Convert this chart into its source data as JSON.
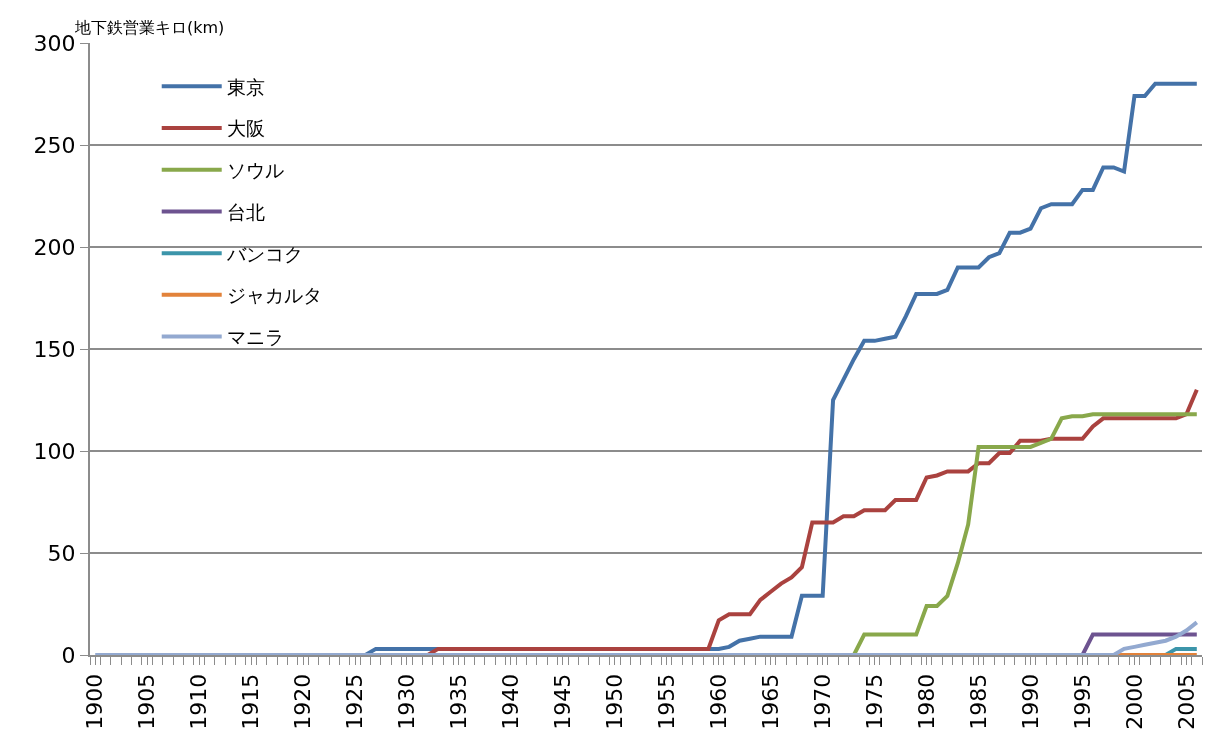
{
  "chart_data": {
    "type": "line",
    "ylabel": "地下鉄営業キロ(km)",
    "categories": [
      "1900",
      null,
      null,
      null,
      null,
      "1905",
      null,
      null,
      null,
      null,
      "1910",
      null,
      null,
      null,
      null,
      "1915",
      null,
      null,
      null,
      null,
      "1920",
      null,
      null,
      null,
      null,
      "1925",
      null,
      null,
      null,
      null,
      "1930",
      null,
      null,
      null,
      null,
      "1935",
      null,
      null,
      null,
      null,
      "1940",
      null,
      null,
      null,
      null,
      "1945",
      null,
      null,
      null,
      null,
      "1950",
      null,
      null,
      null,
      null,
      "1955",
      null,
      null,
      null,
      null,
      "1960",
      null,
      null,
      null,
      null,
      "1965",
      null,
      null,
      null,
      null,
      "1970",
      null,
      null,
      null,
      null,
      "1975",
      null,
      null,
      null,
      null,
      "1980",
      null,
      null,
      null,
      null,
      "1985",
      null,
      null,
      null,
      null,
      "1990",
      null,
      null,
      null,
      null,
      "1995",
      null,
      null,
      null,
      null,
      "2000",
      null,
      null,
      null,
      null,
      "2005",
      null
    ],
    "series": [
      {
        "name": "東京",
        "color": "#4472a8",
        "values": [
          null,
          null,
          null,
          null,
          null,
          null,
          null,
          null,
          null,
          null,
          null,
          null,
          null,
          null,
          null,
          null,
          null,
          null,
          null,
          null,
          null,
          null,
          null,
          null,
          null,
          null,
          0,
          3,
          3,
          3,
          3,
          3,
          3,
          3,
          null,
          null,
          null,
          null,
          null,
          null,
          null,
          null,
          null,
          null,
          null,
          null,
          null,
          null,
          null,
          null,
          null,
          null,
          null,
          null,
          null,
          null,
          null,
          null,
          null,
          3,
          3,
          4,
          7,
          8,
          9,
          9,
          9,
          9,
          29,
          29,
          29,
          125,
          135,
          145,
          154,
          154,
          155,
          156,
          166,
          177,
          177,
          177,
          179,
          190,
          190,
          190,
          195,
          197,
          207,
          207,
          209,
          219,
          221,
          221,
          221,
          228,
          228,
          239,
          239,
          237,
          274,
          274,
          280,
          280,
          280,
          280,
          280
        ]
      },
      {
        "name": "大阪",
        "color": "#aa423f",
        "values": [
          null,
          null,
          null,
          null,
          null,
          null,
          null,
          null,
          null,
          null,
          null,
          null,
          null,
          null,
          null,
          null,
          null,
          null,
          null,
          null,
          null,
          null,
          null,
          null,
          null,
          null,
          null,
          null,
          null,
          null,
          null,
          0,
          0,
          3,
          3,
          3,
          3,
          3,
          3,
          3,
          3,
          3,
          3,
          3,
          3,
          3,
          3,
          3,
          3,
          3,
          3,
          3,
          3,
          3,
          3,
          3,
          3,
          3,
          3,
          3,
          17,
          20,
          20,
          20,
          27,
          31,
          35,
          38,
          43,
          65,
          65,
          65,
          68,
          68,
          71,
          71,
          71,
          76,
          76,
          76,
          87,
          88,
          90,
          90,
          90,
          94,
          94,
          99,
          99,
          105,
          105,
          105,
          106,
          106,
          106,
          106,
          112,
          116,
          116,
          116,
          116,
          116,
          116,
          116,
          116,
          118,
          130
        ]
      },
      {
        "name": "ソウル",
        "color": "#89a84b",
        "values": [
          null,
          null,
          null,
          null,
          null,
          null,
          null,
          null,
          null,
          null,
          null,
          null,
          null,
          null,
          null,
          null,
          null,
          null,
          null,
          null,
          null,
          null,
          null,
          null,
          null,
          null,
          null,
          null,
          null,
          null,
          null,
          null,
          null,
          null,
          null,
          null,
          null,
          null,
          null,
          null,
          null,
          null,
          null,
          null,
          null,
          null,
          null,
          null,
          null,
          null,
          null,
          null,
          null,
          null,
          null,
          null,
          null,
          null,
          null,
          null,
          null,
          null,
          null,
          null,
          null,
          null,
          null,
          null,
          null,
          null,
          null,
          null,
          null,
          0,
          10,
          10,
          10,
          10,
          10,
          10,
          24,
          24,
          29,
          45,
          64,
          102,
          102,
          102,
          102,
          102,
          102,
          104,
          106,
          116,
          117,
          117,
          118,
          118,
          118,
          118,
          118,
          118,
          118,
          118,
          118,
          118,
          118
        ]
      },
      {
        "name": "台北",
        "color": "#6d5390",
        "values": [
          null,
          null,
          null,
          null,
          null,
          null,
          null,
          null,
          null,
          null,
          null,
          null,
          null,
          null,
          null,
          null,
          null,
          null,
          null,
          null,
          null,
          null,
          null,
          null,
          null,
          null,
          null,
          null,
          null,
          null,
          null,
          null,
          null,
          null,
          null,
          null,
          null,
          null,
          null,
          null,
          null,
          null,
          null,
          null,
          null,
          null,
          null,
          null,
          null,
          null,
          null,
          null,
          null,
          null,
          null,
          null,
          null,
          null,
          null,
          null,
          null,
          null,
          null,
          null,
          null,
          null,
          null,
          null,
          null,
          null,
          null,
          null,
          null,
          null,
          null,
          null,
          null,
          null,
          null,
          null,
          null,
          null,
          null,
          null,
          null,
          null,
          null,
          null,
          null,
          null,
          null,
          null,
          null,
          null,
          null,
          0,
          10,
          10,
          10,
          10,
          10,
          10,
          10,
          10,
          10,
          10,
          10
        ]
      },
      {
        "name": "バンコク",
        "color": "#3c95aa",
        "values": [
          null,
          null,
          null,
          null,
          null,
          null,
          null,
          null,
          null,
          null,
          null,
          null,
          null,
          null,
          null,
          null,
          null,
          null,
          null,
          null,
          null,
          null,
          null,
          null,
          null,
          null,
          null,
          null,
          null,
          null,
          null,
          null,
          null,
          null,
          null,
          null,
          null,
          null,
          null,
          null,
          null,
          null,
          null,
          null,
          null,
          null,
          null,
          null,
          null,
          null,
          null,
          null,
          null,
          null,
          null,
          null,
          null,
          null,
          null,
          null,
          null,
          null,
          null,
          null,
          null,
          null,
          null,
          null,
          null,
          null,
          null,
          null,
          null,
          null,
          null,
          null,
          null,
          null,
          null,
          null,
          null,
          null,
          null,
          null,
          null,
          null,
          null,
          null,
          null,
          null,
          null,
          null,
          null,
          null,
          null,
          null,
          null,
          null,
          null,
          null,
          null,
          null,
          null,
          0,
          3,
          3,
          3
        ]
      },
      {
        "name": "ジャカルタ",
        "color": "#e2823a",
        "values": [
          null,
          null,
          null,
          null,
          null,
          null,
          null,
          null,
          null,
          null,
          null,
          null,
          null,
          null,
          null,
          null,
          null,
          null,
          null,
          null,
          null,
          null,
          null,
          null,
          null,
          null,
          null,
          null,
          null,
          null,
          null,
          null,
          null,
          null,
          null,
          null,
          null,
          null,
          null,
          null,
          null,
          null,
          null,
          null,
          null,
          null,
          null,
          null,
          null,
          null,
          null,
          null,
          null,
          null,
          null,
          null,
          null,
          null,
          null,
          null,
          null,
          null,
          null,
          null,
          null,
          null,
          null,
          null,
          null,
          null,
          null,
          null,
          null,
          null,
          null,
          null,
          null,
          null,
          null,
          null,
          null,
          null,
          null,
          null,
          null,
          null,
          null,
          null,
          null,
          null,
          null,
          null,
          null,
          null,
          null,
          null,
          null,
          null,
          0,
          0,
          0,
          0,
          0,
          0,
          0,
          0,
          0
        ]
      },
      {
        "name": "マニラ",
        "color": "#93a9d0",
        "values": [
          0,
          0,
          0,
          0,
          0,
          0,
          0,
          0,
          0,
          0,
          0,
          0,
          0,
          0,
          0,
          0,
          0,
          0,
          0,
          0,
          0,
          0,
          0,
          0,
          0,
          0,
          0,
          0,
          0,
          0,
          0,
          0,
          0,
          0,
          0,
          0,
          0,
          0,
          0,
          0,
          0,
          0,
          0,
          0,
          0,
          0,
          0,
          0,
          0,
          0,
          0,
          0,
          0,
          0,
          0,
          0,
          0,
          0,
          0,
          0,
          0,
          0,
          0,
          0,
          0,
          0,
          0,
          0,
          0,
          0,
          0,
          0,
          0,
          0,
          0,
          0,
          0,
          0,
          0,
          0,
          0,
          0,
          0,
          0,
          0,
          0,
          0,
          0,
          0,
          0,
          0,
          0,
          0,
          0,
          0,
          0,
          0,
          0,
          0,
          3,
          4,
          5,
          6,
          7,
          9,
          12,
          16
        ]
      }
    ],
    "ylim": [
      0,
      300
    ],
    "yticks": [
      0,
      50,
      100,
      150,
      200,
      250,
      300
    ],
    "grid": "y",
    "legend": "top left",
    "marker": "none",
    "line_style": "solid"
  }
}
